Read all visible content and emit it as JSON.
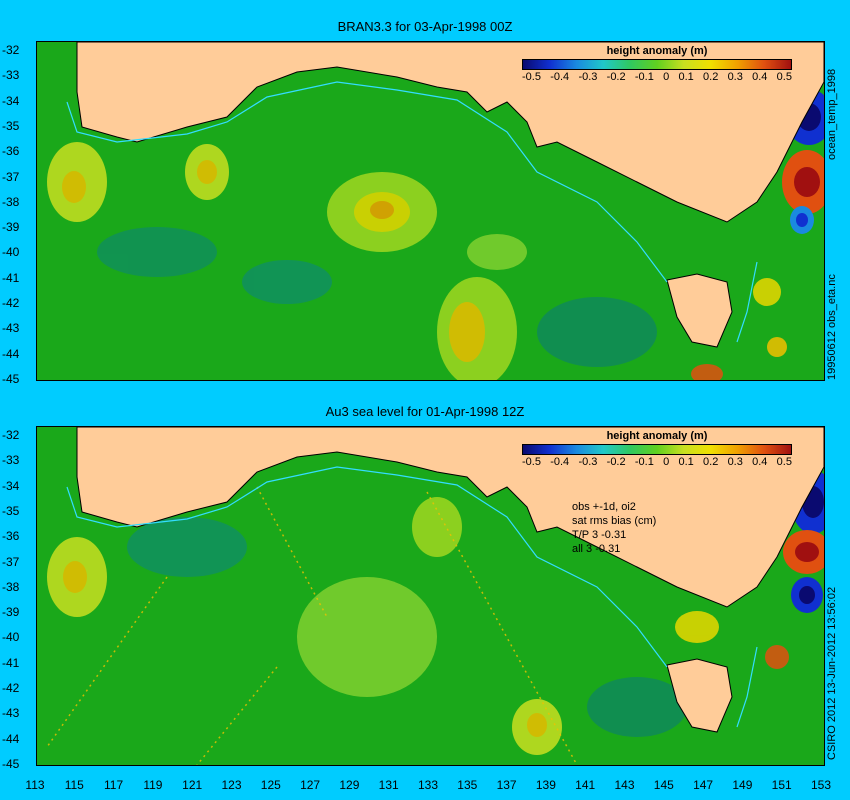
{
  "panels": [
    {
      "title": "BRAN3.3 for 03-Apr-1998 00Z",
      "side_label": "ocean_temp_1998"
    },
    {
      "title": "Au3 sea level  for 01-Apr-1998 12Z",
      "side_label": "CSIRO 2012  13-Jun-2012 13:56:02"
    }
  ],
  "mid_side_label": "19950612 obs_eta.nc",
  "y_ticks": [
    "-32",
    "-33",
    "-34",
    "-35",
    "-36",
    "-37",
    "-38",
    "-39",
    "-40",
    "-41",
    "-42",
    "-43",
    "-44",
    "-45"
  ],
  "x_ticks": [
    "113",
    "115",
    "117",
    "119",
    "121",
    "123",
    "125",
    "127",
    "129",
    "131",
    "133",
    "135",
    "137",
    "139",
    "141",
    "143",
    "145",
    "147",
    "149",
    "151",
    "153"
  ],
  "colorbar": {
    "title": "height anomaly (m)",
    "labels": [
      "-0.5",
      "-0.4",
      "-0.3",
      "-0.2",
      "-0.1",
      "0",
      "0.1",
      "0.2",
      "0.3",
      "0.4",
      "0.5"
    ]
  },
  "stats": [
    "obs +-1d, oi2",
    "sat rms bias (cm)",
    "T/P   3 -0.31",
    "all 3 -0.31"
  ],
  "colors": {
    "background": "#00ccff",
    "land": "#ffcc99",
    "ocean_base": "#1aa81a",
    "coast_track": "#33ddff"
  }
}
